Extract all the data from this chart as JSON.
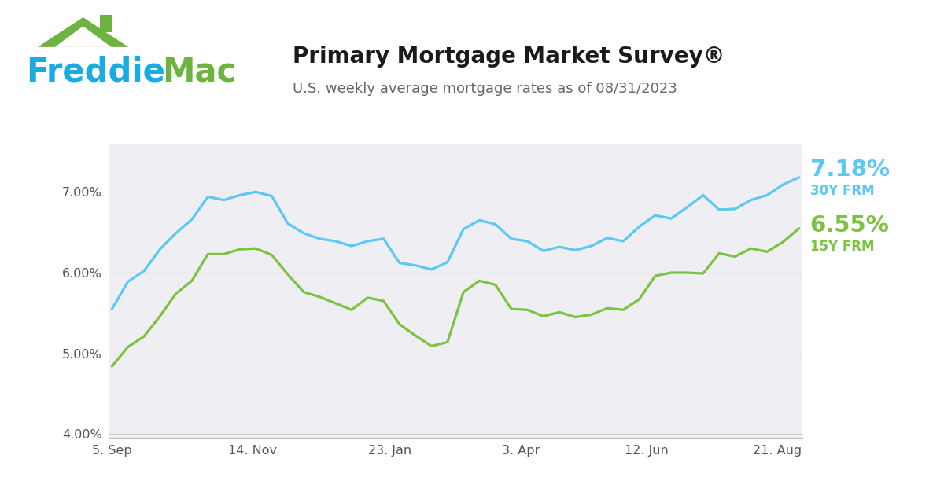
{
  "title": "Primary Mortgage Market Survey®",
  "subtitle": "U.S. weekly average mortgage rates as of 08/31/2023",
  "freddie_blue": "#1AABE3",
  "freddie_green": "#6DB33F",
  "line_30y_color": "#5BC8F5",
  "line_15y_color": "#7DC242",
  "background_color": "#FFFFFF",
  "plot_bg_color": "#EEEEF3",
  "label_30y": "7.18%",
  "label_30y_sub": "30Y FRM",
  "label_15y": "6.55%",
  "label_15y_sub": "15Y FRM",
  "ylim": [
    3.95,
    7.6
  ],
  "yticks": [
    4.0,
    5.0,
    6.0,
    7.0
  ],
  "ytick_labels": [
    "4.00%",
    "5.00%",
    "6.00%",
    "7.00%"
  ],
  "xtick_labels": [
    "5. Sep",
    "14. Nov",
    "23. Jan",
    "3. Apr",
    "12. Jun",
    "21. Aug"
  ],
  "xtick_positions": [
    0,
    0.205,
    0.405,
    0.595,
    0.778,
    0.968
  ],
  "data_30y": [
    5.55,
    5.89,
    6.02,
    6.29,
    6.49,
    6.66,
    6.94,
    6.9,
    6.96,
    7.0,
    6.95,
    6.61,
    6.49,
    6.42,
    6.39,
    6.33,
    6.39,
    6.42,
    6.12,
    6.09,
    6.04,
    6.13,
    6.54,
    6.65,
    6.6,
    6.42,
    6.39,
    6.27,
    6.32,
    6.28,
    6.33,
    6.43,
    6.39,
    6.57,
    6.71,
    6.67,
    6.81,
    6.96,
    6.78,
    6.79,
    6.9,
    6.96,
    7.09,
    7.18
  ],
  "data_15y": [
    4.84,
    5.08,
    5.21,
    5.46,
    5.74,
    5.9,
    6.23,
    6.23,
    6.29,
    6.3,
    6.22,
    5.98,
    5.76,
    5.7,
    5.62,
    5.54,
    5.69,
    5.65,
    5.36,
    5.22,
    5.09,
    5.14,
    5.76,
    5.9,
    5.85,
    5.55,
    5.54,
    5.46,
    5.51,
    5.45,
    5.48,
    5.56,
    5.54,
    5.67,
    5.96,
    6.0,
    6.0,
    5.99,
    6.24,
    6.2,
    6.3,
    6.26,
    6.38,
    6.55
  ],
  "grid_color": "#CCCCCC",
  "tick_color": "#555555",
  "title_color": "#1A1A1A",
  "subtitle_color": "#666666"
}
